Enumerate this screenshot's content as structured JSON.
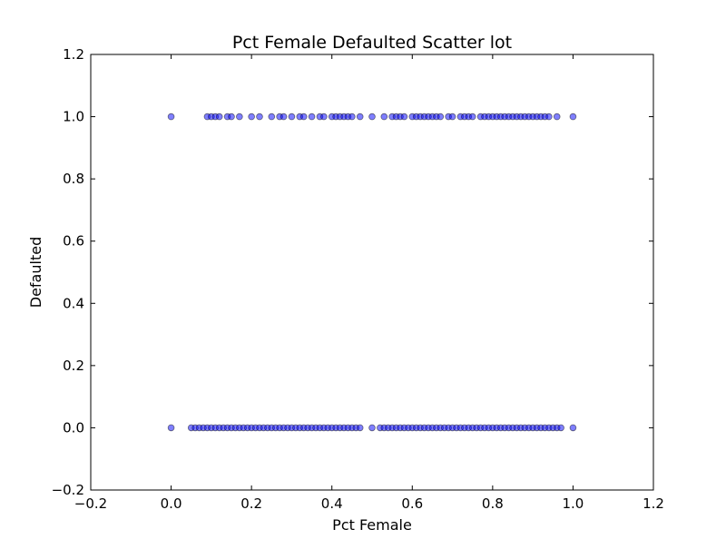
{
  "chart_data": {
    "type": "scatter",
    "title": "Pct Female Defaulted Scatter lot",
    "xlabel": "Pct Female",
    "ylabel": "Defaulted",
    "xlim": [
      -0.2,
      1.2
    ],
    "ylim": [
      -0.2,
      1.2
    ],
    "xticks": [
      -0.2,
      0.0,
      0.2,
      0.4,
      0.6,
      0.8,
      1.0,
      1.2
    ],
    "yticks": [
      -0.2,
      0.0,
      0.2,
      0.4,
      0.6,
      0.8,
      1.0,
      1.2
    ],
    "xtick_labels": [
      "−0.2",
      "0.0",
      "0.2",
      "0.4",
      "0.6",
      "0.8",
      "1.0",
      "1.2"
    ],
    "ytick_labels": [
      "−0.2",
      "0.0",
      "0.2",
      "0.4",
      "0.6",
      "0.8",
      "1.0",
      "1.2"
    ],
    "grid": false,
    "legend": "none",
    "marker_color": "#0000ff",
    "marker_edge_color": "#000000",
    "series": [
      {
        "y": 1.0,
        "x": [
          0.0,
          0.09,
          0.1,
          0.11,
          0.12,
          0.14,
          0.15,
          0.17,
          0.2,
          0.22,
          0.25,
          0.27,
          0.28,
          0.3,
          0.32,
          0.33,
          0.35,
          0.37,
          0.38,
          0.4,
          0.41,
          0.42,
          0.43,
          0.44,
          0.45,
          0.47,
          0.5,
          0.53,
          0.55,
          0.56,
          0.57,
          0.58,
          0.6,
          0.61,
          0.62,
          0.63,
          0.64,
          0.65,
          0.66,
          0.67,
          0.69,
          0.7,
          0.72,
          0.73,
          0.74,
          0.75,
          0.77,
          0.78,
          0.79,
          0.8,
          0.81,
          0.82,
          0.83,
          0.84,
          0.85,
          0.86,
          0.87,
          0.88,
          0.89,
          0.9,
          0.91,
          0.92,
          0.93,
          0.94,
          0.96,
          1.0
        ]
      },
      {
        "y": 0.0,
        "x": [
          0.0,
          0.05,
          0.06,
          0.07,
          0.08,
          0.09,
          0.1,
          0.11,
          0.12,
          0.13,
          0.14,
          0.15,
          0.16,
          0.17,
          0.18,
          0.19,
          0.2,
          0.21,
          0.22,
          0.23,
          0.24,
          0.25,
          0.26,
          0.27,
          0.28,
          0.29,
          0.3,
          0.31,
          0.32,
          0.33,
          0.34,
          0.35,
          0.36,
          0.37,
          0.38,
          0.39,
          0.4,
          0.41,
          0.42,
          0.43,
          0.44,
          0.45,
          0.46,
          0.47,
          0.5,
          0.52,
          0.53,
          0.54,
          0.55,
          0.56,
          0.57,
          0.58,
          0.59,
          0.6,
          0.61,
          0.62,
          0.63,
          0.64,
          0.65,
          0.66,
          0.67,
          0.68,
          0.69,
          0.7,
          0.71,
          0.72,
          0.73,
          0.74,
          0.75,
          0.76,
          0.77,
          0.78,
          0.79,
          0.8,
          0.81,
          0.82,
          0.83,
          0.84,
          0.85,
          0.86,
          0.87,
          0.88,
          0.89,
          0.9,
          0.91,
          0.92,
          0.93,
          0.94,
          0.95,
          0.96,
          0.97,
          1.0
        ]
      }
    ]
  }
}
